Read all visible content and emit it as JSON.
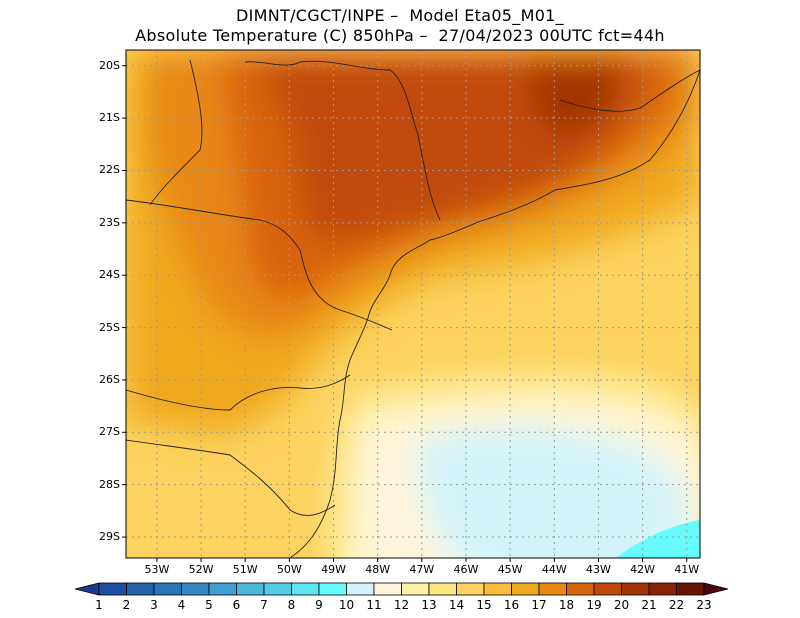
{
  "title_line1": "DIMNT/CGCT/INPE –  Model Eta05_M01_",
  "title_line2": "Absolute Temperature (C) 850hPa –  27/04/2023 00UTC fct=44h",
  "lat_labels": [
    "20S",
    "21S",
    "22S",
    "23S",
    "24S",
    "25S",
    "26S",
    "27S",
    "28S",
    "29S"
  ],
  "lon_labels": [
    "53W",
    "52W",
    "51W",
    "50W",
    "49W",
    "48W",
    "47W",
    "46W",
    "45W",
    "44W",
    "43W",
    "42W",
    "41W"
  ],
  "colorbar": {
    "levels": [
      "1",
      "2",
      "3",
      "4",
      "5",
      "6",
      "7",
      "8",
      "9",
      "10",
      "11",
      "12",
      "13",
      "14",
      "15",
      "16",
      "17",
      "18",
      "19",
      "20",
      "21",
      "22",
      "23"
    ],
    "colors": [
      "#1e3a8c",
      "#1e4f9e",
      "#2461aa",
      "#2a74b8",
      "#3488c4",
      "#3da0d0",
      "#4ab8dc",
      "#52cde6",
      "#5ce6f0",
      "#66fcff",
      "#d4f4fa",
      "#fff5dc",
      "#fff1a8",
      "#ffe680",
      "#fdd25e",
      "#f8bd3c",
      "#f0a81e",
      "#e88812",
      "#d8640a",
      "#c04808",
      "#a23406",
      "#862404",
      "#6a1402",
      "#500010"
    ]
  },
  "map": {
    "lat_range": [
      29.4,
      19.7
    ],
    "lon_range": [
      -53.7,
      -40.7
    ],
    "grid": true
  }
}
